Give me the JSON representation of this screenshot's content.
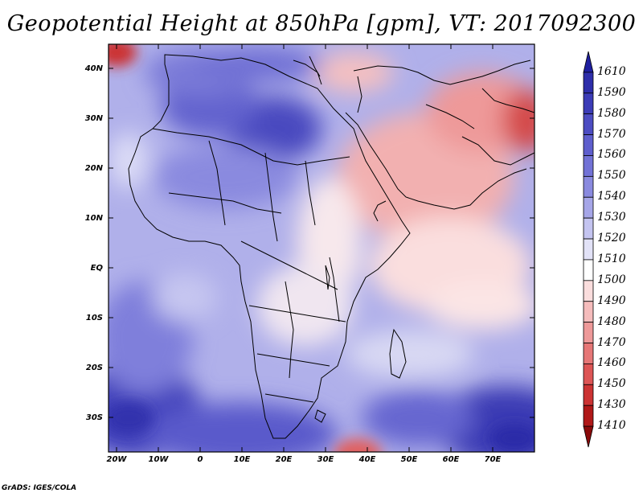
{
  "title": "Geopotential Height at 850hPa [gpm], VT: 2017092300",
  "credit": "GrADS: IGES/COLA",
  "map": {
    "region": "Africa and Middle East",
    "variable": "Geopotential Height",
    "level": "850hPa",
    "units": "gpm",
    "valid_time": "2017092300",
    "lat_labels": [
      "40N",
      "30N",
      "20N",
      "10N",
      "EQ",
      "10S",
      "20S",
      "30S"
    ],
    "lon_labels": [
      "20W",
      "10W",
      "0",
      "10E",
      "20E",
      "30E",
      "40E",
      "50E",
      "60E",
      "70E"
    ],
    "lat_range": [
      -37,
      45
    ],
    "lon_range": [
      -23,
      80
    ]
  },
  "colorbar": {
    "levels": [
      "1610",
      "1590",
      "1580",
      "1570",
      "1560",
      "1550",
      "1540",
      "1530",
      "1520",
      "1510",
      "1500",
      "1490",
      "1480",
      "1470",
      "1460",
      "1450",
      "1430",
      "1410"
    ],
    "colors": [
      "#1f1fa0",
      "#2e2eaa",
      "#3c3cb7",
      "#4c4cc2",
      "#5e5ecd",
      "#7272d6",
      "#8a8adf",
      "#a6a6e8",
      "#c4c4f0",
      "#e2e2f7",
      "#ffffff",
      "#fadddd",
      "#f5bcbc",
      "#ee9999",
      "#e67777",
      "#dd5555",
      "#cc3333",
      "#b01818",
      "#8a0a0a"
    ]
  }
}
